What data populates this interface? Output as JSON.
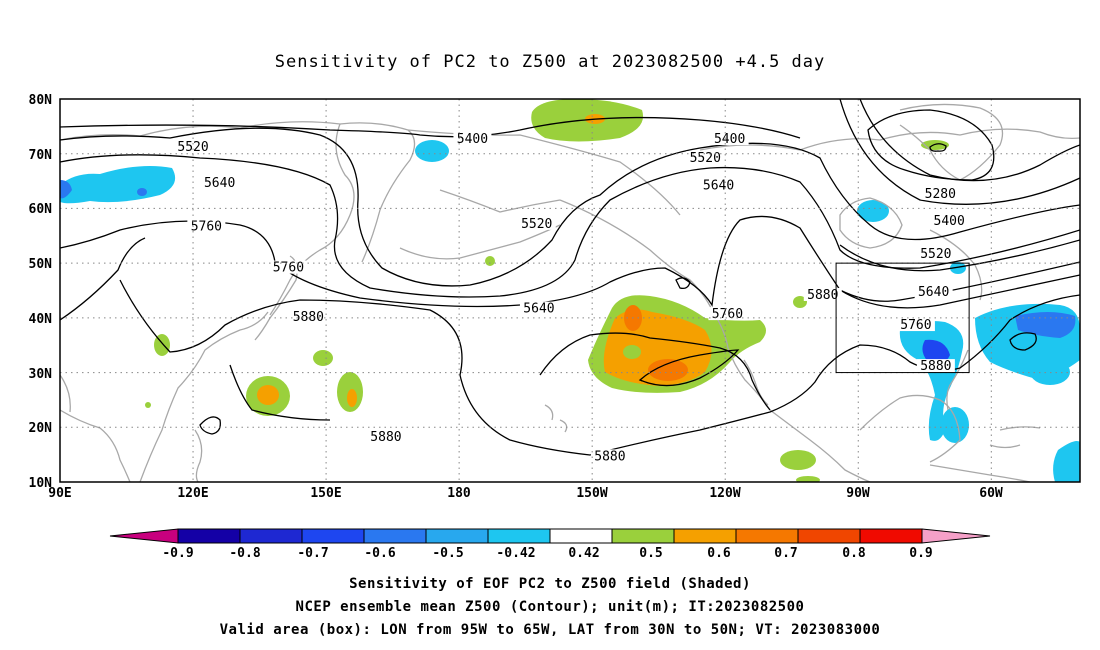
{
  "title": "Sensitivity of PC2 to Z500 at 2023082500 +4.5 day",
  "map": {
    "lon_ticks": [
      "90E",
      "120E",
      "150E",
      "180",
      "150W",
      "120W",
      "90W",
      "60W"
    ],
    "lat_ticks": [
      "80N",
      "70N",
      "60N",
      "50N",
      "40N",
      "30N",
      "20N",
      "10N"
    ]
  },
  "contour_labels": [
    {
      "text": "5520",
      "lon": 120,
      "lat": 71
    },
    {
      "text": "5640",
      "lon": 126,
      "lat": 64.5
    },
    {
      "text": "5400",
      "lon": 183,
      "lat": 72.5
    },
    {
      "text": "5400",
      "lon": 241,
      "lat": 72.5
    },
    {
      "text": "5520",
      "lon": 235.5,
      "lat": 69
    },
    {
      "text": "5640",
      "lon": 238.5,
      "lat": 64
    },
    {
      "text": "5760",
      "lon": 123,
      "lat": 56.5
    },
    {
      "text": "5520",
      "lon": 197.5,
      "lat": 57
    },
    {
      "text": "5280",
      "lon": 288.5,
      "lat": 62.5
    },
    {
      "text": "5400",
      "lon": 290.5,
      "lat": 57.5
    },
    {
      "text": "5520",
      "lon": 287.5,
      "lat": 51.5
    },
    {
      "text": "5760",
      "lon": 141.5,
      "lat": 49
    },
    {
      "text": "5640",
      "lon": 287,
      "lat": 44.5
    },
    {
      "text": "5880",
      "lon": 262,
      "lat": 44
    },
    {
      "text": "5640",
      "lon": 198,
      "lat": 41.5
    },
    {
      "text": "5760",
      "lon": 240.5,
      "lat": 40.5
    },
    {
      "text": "5880",
      "lon": 146,
      "lat": 40
    },
    {
      "text": "5760",
      "lon": 283,
      "lat": 38.5
    },
    {
      "text": "5880",
      "lon": 287.5,
      "lat": 31
    },
    {
      "text": "5880",
      "lon": 163.5,
      "lat": 18
    },
    {
      "text": "5880",
      "lon": 214,
      "lat": 14.5
    }
  ],
  "valid_box": {
    "lon_min": -95,
    "lon_max": -65,
    "lat_min": 30,
    "lat_max": 50
  },
  "colorbar": {
    "labels": [
      "-0.9",
      "-0.8",
      "-0.7",
      "-0.6",
      "-0.5",
      "-0.42",
      "0.42",
      "0.5",
      "0.6",
      "0.7",
      "0.8",
      "0.9"
    ],
    "colors": [
      "#c8007e",
      "#1400a6",
      "#1e28d2",
      "#1e46f0",
      "#2a78f0",
      "#28a8ee",
      "#1ec6f0",
      "#ffffff",
      "#9ad03c",
      "#f5a000",
      "#f57800",
      "#f04600",
      "#f00a00",
      "#f5a0c8"
    ]
  },
  "footer": {
    "line1": "Sensitivity of EOF PC2 to Z500 field (Shaded)",
    "line2": "NCEP ensemble mean Z500 (Contour); unit(m); IT:2023082500",
    "line3": "Valid area (box): LON from 95W to 65W, LAT from 30N to 50N; VT: 2023083000"
  }
}
